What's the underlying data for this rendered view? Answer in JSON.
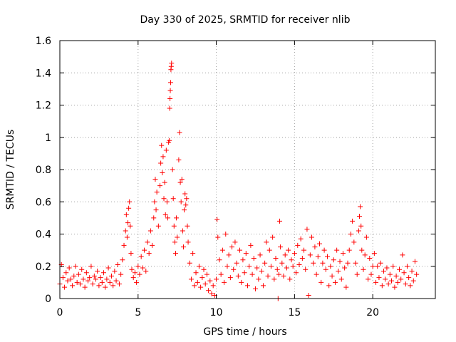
{
  "chart_data": {
    "type": "scatter",
    "title": "Day 330 of 2025, SRMTID for receiver nlib",
    "xlabel": "GPS time / hours",
    "ylabel": "SRMTID / TECUs",
    "xlim": [
      0,
      24
    ],
    "ylim": [
      0,
      1.6
    ],
    "grid": true,
    "marker": "+",
    "series": [
      {
        "name": "SRMTID",
        "color": "#ff0000",
        "points": [
          [
            0.0,
            0.09
          ],
          [
            0.1,
            0.21
          ],
          [
            0.2,
            0.13
          ],
          [
            0.3,
            0.07
          ],
          [
            0.4,
            0.16
          ],
          [
            0.5,
            0.11
          ],
          [
            0.6,
            0.19
          ],
          [
            0.7,
            0.12
          ],
          [
            0.8,
            0.08
          ],
          [
            0.9,
            0.14
          ],
          [
            1.0,
            0.2
          ],
          [
            1.1,
            0.1
          ],
          [
            1.2,
            0.15
          ],
          [
            1.3,
            0.09
          ],
          [
            1.4,
            0.18
          ],
          [
            1.5,
            0.12
          ],
          [
            1.6,
            0.07
          ],
          [
            1.7,
            0.16
          ],
          [
            1.8,
            0.11
          ],
          [
            1.9,
            0.13
          ],
          [
            2.0,
            0.2
          ],
          [
            2.1,
            0.09
          ],
          [
            2.2,
            0.14
          ],
          [
            2.3,
            0.12
          ],
          [
            2.4,
            0.17
          ],
          [
            2.5,
            0.08
          ],
          [
            2.6,
            0.13
          ],
          [
            2.7,
            0.1
          ],
          [
            2.8,
            0.16
          ],
          [
            2.9,
            0.07
          ],
          [
            3.0,
            0.12
          ],
          [
            3.1,
            0.19
          ],
          [
            3.2,
            0.1
          ],
          [
            3.3,
            0.14
          ],
          [
            3.4,
            0.08
          ],
          [
            3.5,
            0.17
          ],
          [
            3.6,
            0.11
          ],
          [
            3.7,
            0.21
          ],
          [
            3.8,
            0.09
          ],
          [
            3.9,
            0.15
          ],
          [
            4.0,
            0.24
          ],
          [
            4.1,
            0.33
          ],
          [
            4.2,
            0.42
          ],
          [
            4.25,
            0.52
          ],
          [
            4.3,
            0.38
          ],
          [
            4.35,
            0.47
          ],
          [
            4.4,
            0.56
          ],
          [
            4.45,
            0.6
          ],
          [
            4.5,
            0.45
          ],
          [
            4.55,
            0.28
          ],
          [
            4.6,
            0.18
          ],
          [
            4.7,
            0.13
          ],
          [
            4.8,
            0.16
          ],
          [
            4.9,
            0.1
          ],
          [
            5.0,
            0.2
          ],
          [
            5.1,
            0.15
          ],
          [
            5.2,
            0.26
          ],
          [
            5.3,
            0.19
          ],
          [
            5.4,
            0.3
          ],
          [
            5.5,
            0.17
          ],
          [
            5.6,
            0.35
          ],
          [
            5.7,
            0.28
          ],
          [
            5.8,
            0.42
          ],
          [
            5.9,
            0.33
          ],
          [
            6.0,
            0.5
          ],
          [
            6.05,
            0.6
          ],
          [
            6.1,
            0.74
          ],
          [
            6.15,
            0.55
          ],
          [
            6.2,
            0.66
          ],
          [
            6.3,
            0.45
          ],
          [
            6.4,
            0.7
          ],
          [
            6.45,
            0.84
          ],
          [
            6.5,
            0.95
          ],
          [
            6.55,
            0.78
          ],
          [
            6.6,
            0.88
          ],
          [
            6.65,
            0.62
          ],
          [
            6.7,
            0.72
          ],
          [
            6.75,
            0.52
          ],
          [
            6.8,
            0.92
          ],
          [
            6.85,
            0.6
          ],
          [
            6.9,
            0.5
          ],
          [
            6.95,
            0.97
          ],
          [
            7.0,
            0.98
          ],
          [
            7.02,
            1.18
          ],
          [
            7.04,
            1.24
          ],
          [
            7.06,
            1.29
          ],
          [
            7.08,
            1.34
          ],
          [
            7.1,
            1.42
          ],
          [
            7.12,
            1.44
          ],
          [
            7.14,
            1.46
          ],
          [
            7.2,
            0.8
          ],
          [
            7.25,
            0.62
          ],
          [
            7.3,
            0.45
          ],
          [
            7.35,
            0.35
          ],
          [
            7.4,
            0.28
          ],
          [
            7.45,
            0.5
          ],
          [
            7.5,
            0.38
          ],
          [
            7.6,
            0.86
          ],
          [
            7.65,
            1.03
          ],
          [
            7.7,
            0.72
          ],
          [
            7.75,
            0.6
          ],
          [
            7.8,
            0.74
          ],
          [
            7.85,
            0.42
          ],
          [
            7.9,
            0.32
          ],
          [
            7.95,
            0.55
          ],
          [
            8.0,
            0.65
          ],
          [
            8.05,
            0.58
          ],
          [
            8.1,
            0.62
          ],
          [
            8.15,
            0.45
          ],
          [
            8.2,
            0.35
          ],
          [
            8.3,
            0.22
          ],
          [
            8.4,
            0.12
          ],
          [
            8.5,
            0.28
          ],
          [
            8.6,
            0.08
          ],
          [
            8.7,
            0.16
          ],
          [
            8.8,
            0.1
          ],
          [
            8.9,
            0.2
          ],
          [
            9.0,
            0.07
          ],
          [
            9.1,
            0.13
          ],
          [
            9.2,
            0.18
          ],
          [
            9.3,
            0.09
          ],
          [
            9.4,
            0.15
          ],
          [
            9.5,
            0.05
          ],
          [
            9.6,
            0.11
          ],
          [
            9.7,
            0.03
          ],
          [
            9.8,
            0.08
          ],
          [
            9.9,
            0.02
          ],
          [
            10.0,
            0.12
          ],
          [
            10.05,
            0.49
          ],
          [
            10.1,
            0.38
          ],
          [
            10.2,
            0.24
          ],
          [
            10.3,
            0.15
          ],
          [
            10.4,
            0.3
          ],
          [
            10.5,
            0.1
          ],
          [
            10.6,
            0.4
          ],
          [
            10.7,
            0.2
          ],
          [
            10.8,
            0.27
          ],
          [
            10.9,
            0.13
          ],
          [
            11.0,
            0.32
          ],
          [
            11.1,
            0.18
          ],
          [
            11.2,
            0.35
          ],
          [
            11.3,
            0.22
          ],
          [
            11.4,
            0.14
          ],
          [
            11.5,
            0.3
          ],
          [
            11.6,
            0.1
          ],
          [
            11.7,
            0.24
          ],
          [
            11.8,
            0.16
          ],
          [
            11.9,
            0.28
          ],
          [
            12.0,
            0.08
          ],
          [
            12.1,
            0.2
          ],
          [
            12.2,
            0.33
          ],
          [
            12.3,
            0.15
          ],
          [
            12.4,
            0.25
          ],
          [
            12.5,
            0.06
          ],
          [
            12.6,
            0.19
          ],
          [
            12.7,
            0.12
          ],
          [
            12.8,
            0.27
          ],
          [
            12.9,
            0.17
          ],
          [
            13.0,
            0.08
          ],
          [
            13.1,
            0.22
          ],
          [
            13.2,
            0.35
          ],
          [
            13.3,
            0.14
          ],
          [
            13.4,
            0.3
          ],
          [
            13.5,
            0.2
          ],
          [
            13.6,
            0.38
          ],
          [
            13.7,
            0.12
          ],
          [
            13.8,
            0.25
          ],
          [
            13.9,
            0.18
          ],
          [
            13.95,
            0.0
          ],
          [
            14.0,
            0.15
          ],
          [
            14.05,
            0.48
          ],
          [
            14.1,
            0.32
          ],
          [
            14.2,
            0.22
          ],
          [
            14.3,
            0.14
          ],
          [
            14.4,
            0.27
          ],
          [
            14.5,
            0.19
          ],
          [
            14.6,
            0.3
          ],
          [
            14.7,
            0.12
          ],
          [
            14.8,
            0.24
          ],
          [
            14.9,
            0.2
          ],
          [
            15.0,
            0.28
          ],
          [
            15.1,
            0.16
          ],
          [
            15.2,
            0.33
          ],
          [
            15.3,
            0.21
          ],
          [
            15.4,
            0.37
          ],
          [
            15.5,
            0.25
          ],
          [
            15.6,
            0.3
          ],
          [
            15.7,
            0.18
          ],
          [
            15.8,
            0.43
          ],
          [
            15.9,
            0.02
          ],
          [
            16.0,
            0.27
          ],
          [
            16.1,
            0.38
          ],
          [
            16.2,
            0.22
          ],
          [
            16.3,
            0.32
          ],
          [
            16.4,
            0.15
          ],
          [
            16.5,
            0.26
          ],
          [
            16.6,
            0.34
          ],
          [
            16.7,
            0.1
          ],
          [
            16.8,
            0.22
          ],
          [
            16.9,
            0.3
          ],
          [
            17.0,
            0.18
          ],
          [
            17.1,
            0.26
          ],
          [
            17.2,
            0.08
          ],
          [
            17.3,
            0.2
          ],
          [
            17.4,
            0.14
          ],
          [
            17.5,
            0.24
          ],
          [
            17.6,
            0.1
          ],
          [
            17.7,
            0.3
          ],
          [
            17.8,
            0.17
          ],
          [
            17.9,
            0.23
          ],
          [
            18.0,
            0.12
          ],
          [
            18.1,
            0.28
          ],
          [
            18.2,
            0.19
          ],
          [
            18.3,
            0.07
          ],
          [
            18.4,
            0.22
          ],
          [
            18.5,
            0.3
          ],
          [
            18.6,
            0.4
          ],
          [
            18.7,
            0.48
          ],
          [
            18.8,
            0.35
          ],
          [
            18.9,
            0.22
          ],
          [
            19.0,
            0.15
          ],
          [
            19.1,
            0.42
          ],
          [
            19.15,
            0.51
          ],
          [
            19.2,
            0.57
          ],
          [
            19.25,
            0.45
          ],
          [
            19.3,
            0.3
          ],
          [
            19.4,
            0.18
          ],
          [
            19.5,
            0.27
          ],
          [
            19.6,
            0.38
          ],
          [
            19.7,
            0.12
          ],
          [
            19.8,
            0.25
          ],
          [
            19.9,
            0.15
          ],
          [
            20.0,
            0.2
          ],
          [
            20.1,
            0.28
          ],
          [
            20.2,
            0.1
          ],
          [
            20.3,
            0.2
          ],
          [
            20.4,
            0.13
          ],
          [
            20.5,
            0.22
          ],
          [
            20.6,
            0.08
          ],
          [
            20.7,
            0.17
          ],
          [
            20.8,
            0.12
          ],
          [
            20.9,
            0.19
          ],
          [
            21.0,
            0.09
          ],
          [
            21.1,
            0.15
          ],
          [
            21.2,
            0.11
          ],
          [
            21.3,
            0.2
          ],
          [
            21.4,
            0.07
          ],
          [
            21.5,
            0.14
          ],
          [
            21.6,
            0.1
          ],
          [
            21.7,
            0.18
          ],
          [
            21.8,
            0.12
          ],
          [
            21.9,
            0.27
          ],
          [
            22.0,
            0.16
          ],
          [
            22.1,
            0.09
          ],
          [
            22.2,
            0.2
          ],
          [
            22.3,
            0.13
          ],
          [
            22.4,
            0.08
          ],
          [
            22.5,
            0.17
          ],
          [
            22.6,
            0.11
          ],
          [
            22.7,
            0.23
          ],
          [
            22.8,
            0.15
          ]
        ]
      }
    ],
    "xticks": [
      "0",
      "5",
      "10",
      "15",
      "20"
    ],
    "xtick_values": [
      0,
      5,
      10,
      15,
      20
    ],
    "yticks": [
      "0",
      "0.2",
      "0.4",
      "0.6",
      "0.8",
      "1",
      "1.2",
      "1.4",
      "1.6"
    ],
    "ytick_values": [
      0,
      0.2,
      0.4,
      0.6,
      0.8,
      1.0,
      1.2,
      1.4,
      1.6
    ]
  }
}
